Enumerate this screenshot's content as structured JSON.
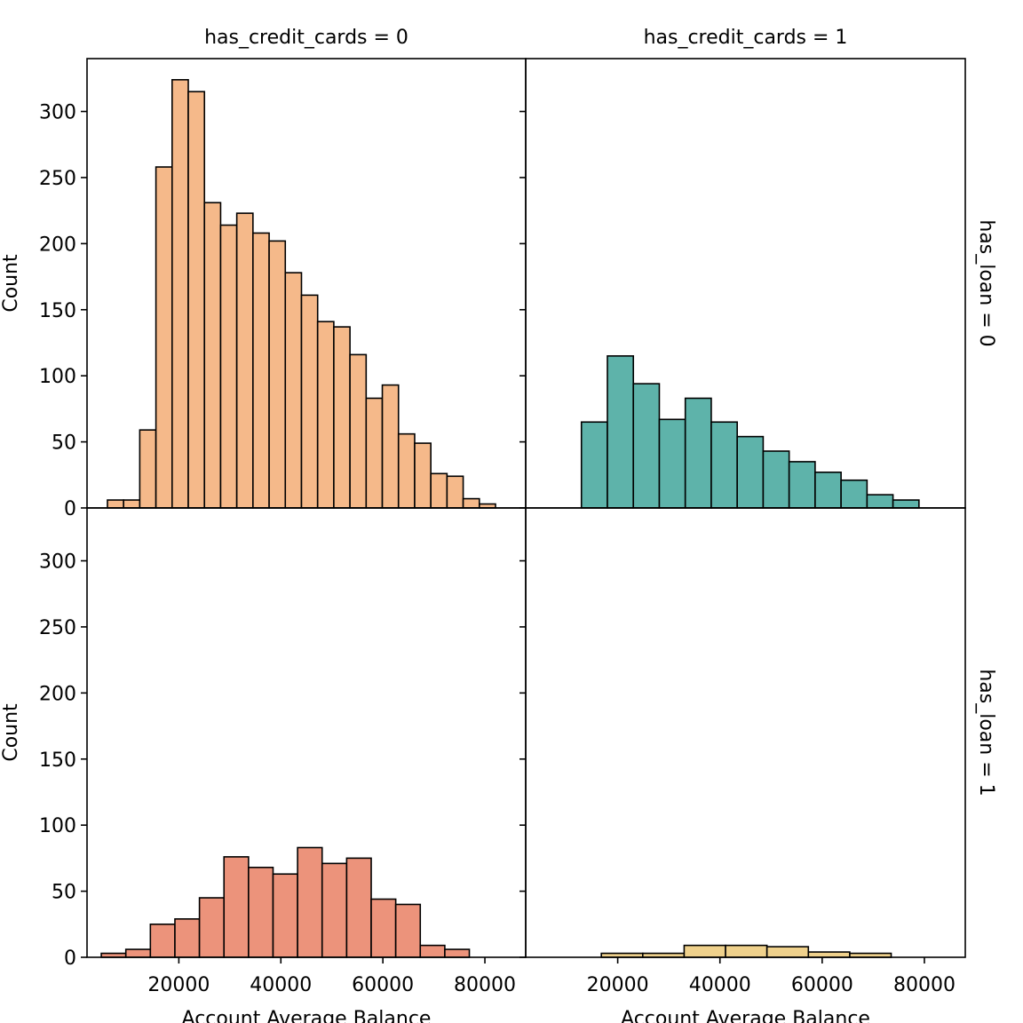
{
  "chart_data": {
    "type": "bar",
    "layout": "facet-grid",
    "col_var_label": "has_credit_cards",
    "row_var_label": "has_loan",
    "xlabel": "Account Average Balance",
    "ylabel": "Count",
    "xlim": [
      2000,
      88000
    ],
    "ylim": [
      0,
      340
    ],
    "xticks": [
      20000,
      40000,
      60000,
      80000
    ],
    "yticks": [
      0,
      50,
      100,
      150,
      200,
      250,
      300
    ],
    "edge_color": "#000000",
    "panels": [
      {
        "row_label": "has_loan = 0",
        "col_label": "has_credit_cards = 0",
        "color": "#f5b98a",
        "bin_start": 6000,
        "bin_width": 3170,
        "counts": [
          6,
          6,
          59,
          258,
          324,
          315,
          231,
          214,
          223,
          208,
          202,
          178,
          161,
          141,
          137,
          116,
          83,
          93,
          56,
          49,
          26,
          24,
          7,
          3
        ]
      },
      {
        "row_label": "has_loan = 0",
        "col_label": "has_credit_cards = 1",
        "color": "#5eb3aa",
        "bin_start": 12900,
        "bin_width": 5080,
        "counts": [
          65,
          115,
          94,
          67,
          83,
          65,
          54,
          43,
          35,
          27,
          21,
          10,
          6
        ]
      },
      {
        "row_label": "has_loan = 1",
        "col_label": "has_credit_cards = 0",
        "color": "#ec937b",
        "bin_start": 4800,
        "bin_width": 4810,
        "counts": [
          3,
          6,
          25,
          29,
          45,
          76,
          68,
          63,
          83,
          71,
          75,
          44,
          40,
          9,
          6
        ]
      },
      {
        "row_label": "has_loan = 1",
        "col_label": "has_credit_cards = 1",
        "color": "#efd18c",
        "bin_start": 16800,
        "bin_width": 8100,
        "counts": [
          3,
          3,
          9,
          9,
          8,
          4,
          3
        ]
      }
    ]
  }
}
